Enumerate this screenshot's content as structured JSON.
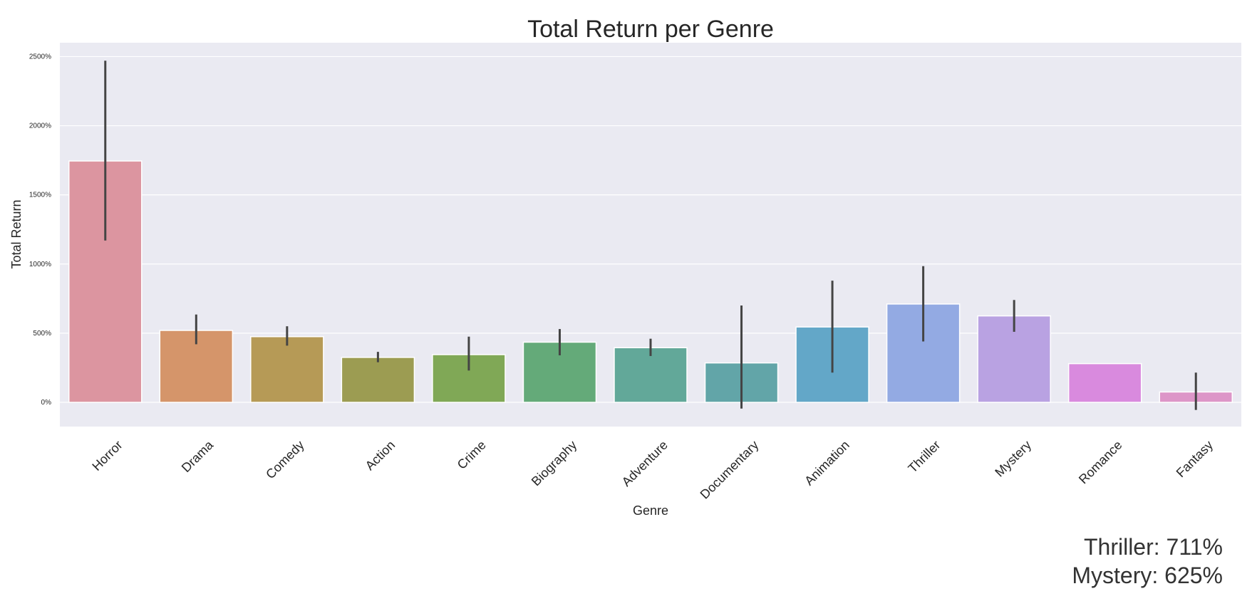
{
  "chart_data": {
    "type": "bar",
    "title": "Total Return per Genre",
    "xlabel": "Genre",
    "ylabel": "Total Return",
    "categories": [
      "Horror",
      "Drama",
      "Comedy",
      "Action",
      "Crime",
      "Biography",
      "Adventure",
      "Documentary",
      "Animation",
      "Thriller",
      "Mystery",
      "Romance",
      "Fantasy"
    ],
    "values": [
      1745,
      520,
      475,
      325,
      345,
      435,
      395,
      285,
      545,
      711,
      625,
      280,
      75
    ],
    "error_bars": [
      [
        1170,
        2470
      ],
      [
        420,
        635
      ],
      [
        410,
        550
      ],
      [
        290,
        365
      ],
      [
        230,
        475
      ],
      [
        340,
        530
      ],
      [
        335,
        460
      ],
      [
        -45,
        700
      ],
      [
        215,
        880
      ],
      [
        440,
        985
      ],
      [
        510,
        740
      ],
      [
        280,
        280
      ],
      [
        -55,
        215
      ]
    ],
    "yticks": [
      0,
      500,
      1000,
      1500,
      2000,
      2500
    ],
    "ytick_labels": [
      "0%",
      "500%",
      "1000%",
      "1500%",
      "2000%",
      "2500%"
    ],
    "ylim": [
      -175,
      2600
    ],
    "grid": true,
    "colors": [
      "#dc95a0",
      "#d5956a",
      "#b69a56",
      "#9c9c52",
      "#80a856",
      "#64aa79",
      "#62a899",
      "#62a5a8",
      "#63a7c8",
      "#93aae3",
      "#b9a2e2",
      "#d98ade",
      "#dd96c8"
    ],
    "annotations": [
      "Thriller: 711%",
      "Mystery: 625%"
    ]
  }
}
